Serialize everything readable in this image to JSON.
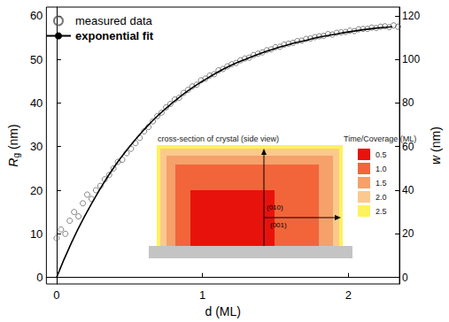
{
  "chart_data": {
    "type": "scatter",
    "xlabel": "d (ML)",
    "ylabel": "Rg (nm)",
    "y2label": "w (nm)",
    "xlim": [
      -0.07,
      2.35
    ],
    "xticks": [
      0,
      1,
      2
    ],
    "ylim": [
      -1.5,
      62
    ],
    "yticks": [
      0,
      10,
      20,
      30,
      40,
      50,
      60
    ],
    "y2lim": [
      -3,
      124
    ],
    "y2ticks": [
      0,
      20,
      40,
      60,
      80,
      100,
      120
    ],
    "grid": false,
    "legend": "upper left",
    "series": [
      {
        "name": "measured data",
        "type": "scatter",
        "marker": "open_circle",
        "color": "#555555",
        "x": [
          0.0,
          0.03,
          0.06,
          0.09,
          0.12,
          0.15,
          0.18,
          0.21,
          0.24,
          0.27,
          0.3,
          0.33,
          0.36,
          0.39,
          0.42,
          0.45,
          0.48,
          0.51,
          0.54,
          0.57,
          0.6,
          0.63,
          0.66,
          0.69,
          0.72,
          0.75,
          0.78,
          0.81,
          0.84,
          0.87,
          0.9,
          0.93,
          0.96,
          0.99,
          1.02,
          1.05,
          1.08,
          1.11,
          1.14,
          1.17,
          1.2,
          1.23,
          1.26,
          1.29,
          1.32,
          1.35,
          1.38,
          1.41,
          1.44,
          1.47,
          1.5,
          1.53,
          1.56,
          1.59,
          1.62,
          1.65,
          1.68,
          1.71,
          1.74,
          1.77,
          1.8,
          1.83,
          1.86,
          1.89,
          1.92,
          1.95,
          1.98,
          2.01,
          2.04,
          2.07,
          2.1,
          2.13,
          2.16,
          2.19,
          2.22,
          2.25,
          2.28,
          2.31,
          2.34
        ],
        "values": [
          9,
          11,
          10,
          13,
          15,
          14,
          17,
          19,
          18,
          20,
          21,
          22.5,
          23.5,
          25,
          26.5,
          27,
          28.5,
          29.5,
          30.8,
          32,
          33.5,
          34.5,
          35.8,
          37,
          37.8,
          39,
          39.8,
          40.8,
          41.2,
          42.3,
          43,
          43.8,
          44.2,
          45.2,
          45.6,
          46.3,
          46.6,
          47.5,
          47.8,
          48.4,
          48.9,
          49.2,
          49.8,
          50.2,
          50.4,
          51,
          51.3,
          51.6,
          52.1,
          52.3,
          52.8,
          52.9,
          53.4,
          53.6,
          53.8,
          54.2,
          54.3,
          54.7,
          54.8,
          55.1,
          55.3,
          55.4,
          55.8,
          55.7,
          56.1,
          56.2,
          56.3,
          56.6,
          56.5,
          56.9,
          57,
          57,
          57.3,
          57.2,
          57.5,
          57.6,
          57.4,
          57.8,
          57.5
        ]
      },
      {
        "name": "exponential fit",
        "type": "line",
        "line_style": "solid",
        "color": "#000000",
        "x": [
          0,
          0.1,
          0.2,
          0.3,
          0.4,
          0.5,
          0.6,
          0.7,
          0.8,
          0.9,
          1.0,
          1.1,
          1.2,
          1.3,
          1.4,
          1.5,
          1.6,
          1.7,
          1.8,
          1.9,
          2.0,
          2.1,
          2.2,
          2.3
        ],
        "values": [
          0,
          7.8,
          14.5,
          20.4,
          25.6,
          30.0,
          33.9,
          37.3,
          40.2,
          42.8,
          45.0,
          47.0,
          48.7,
          50.1,
          51.4,
          52.5,
          53.5,
          54.3,
          55.1,
          55.7,
          56.3,
          56.8,
          57.2,
          57.5
        ]
      }
    ],
    "inset": {
      "title": "cross-section of crystal (side view)",
      "legend_title": "Time/Coverage (ML)",
      "levels": [
        {
          "label": "0.5",
          "color": "#e8120c"
        },
        {
          "label": "1.0",
          "color": "#f2653a"
        },
        {
          "label": "1.5",
          "color": "#f6a06a"
        },
        {
          "label": "2.0",
          "color": "#fbc98e"
        },
        {
          "label": "2.5",
          "color": "#fff25e"
        }
      ],
      "directions": [
        "(010)",
        "(001)"
      ]
    }
  }
}
